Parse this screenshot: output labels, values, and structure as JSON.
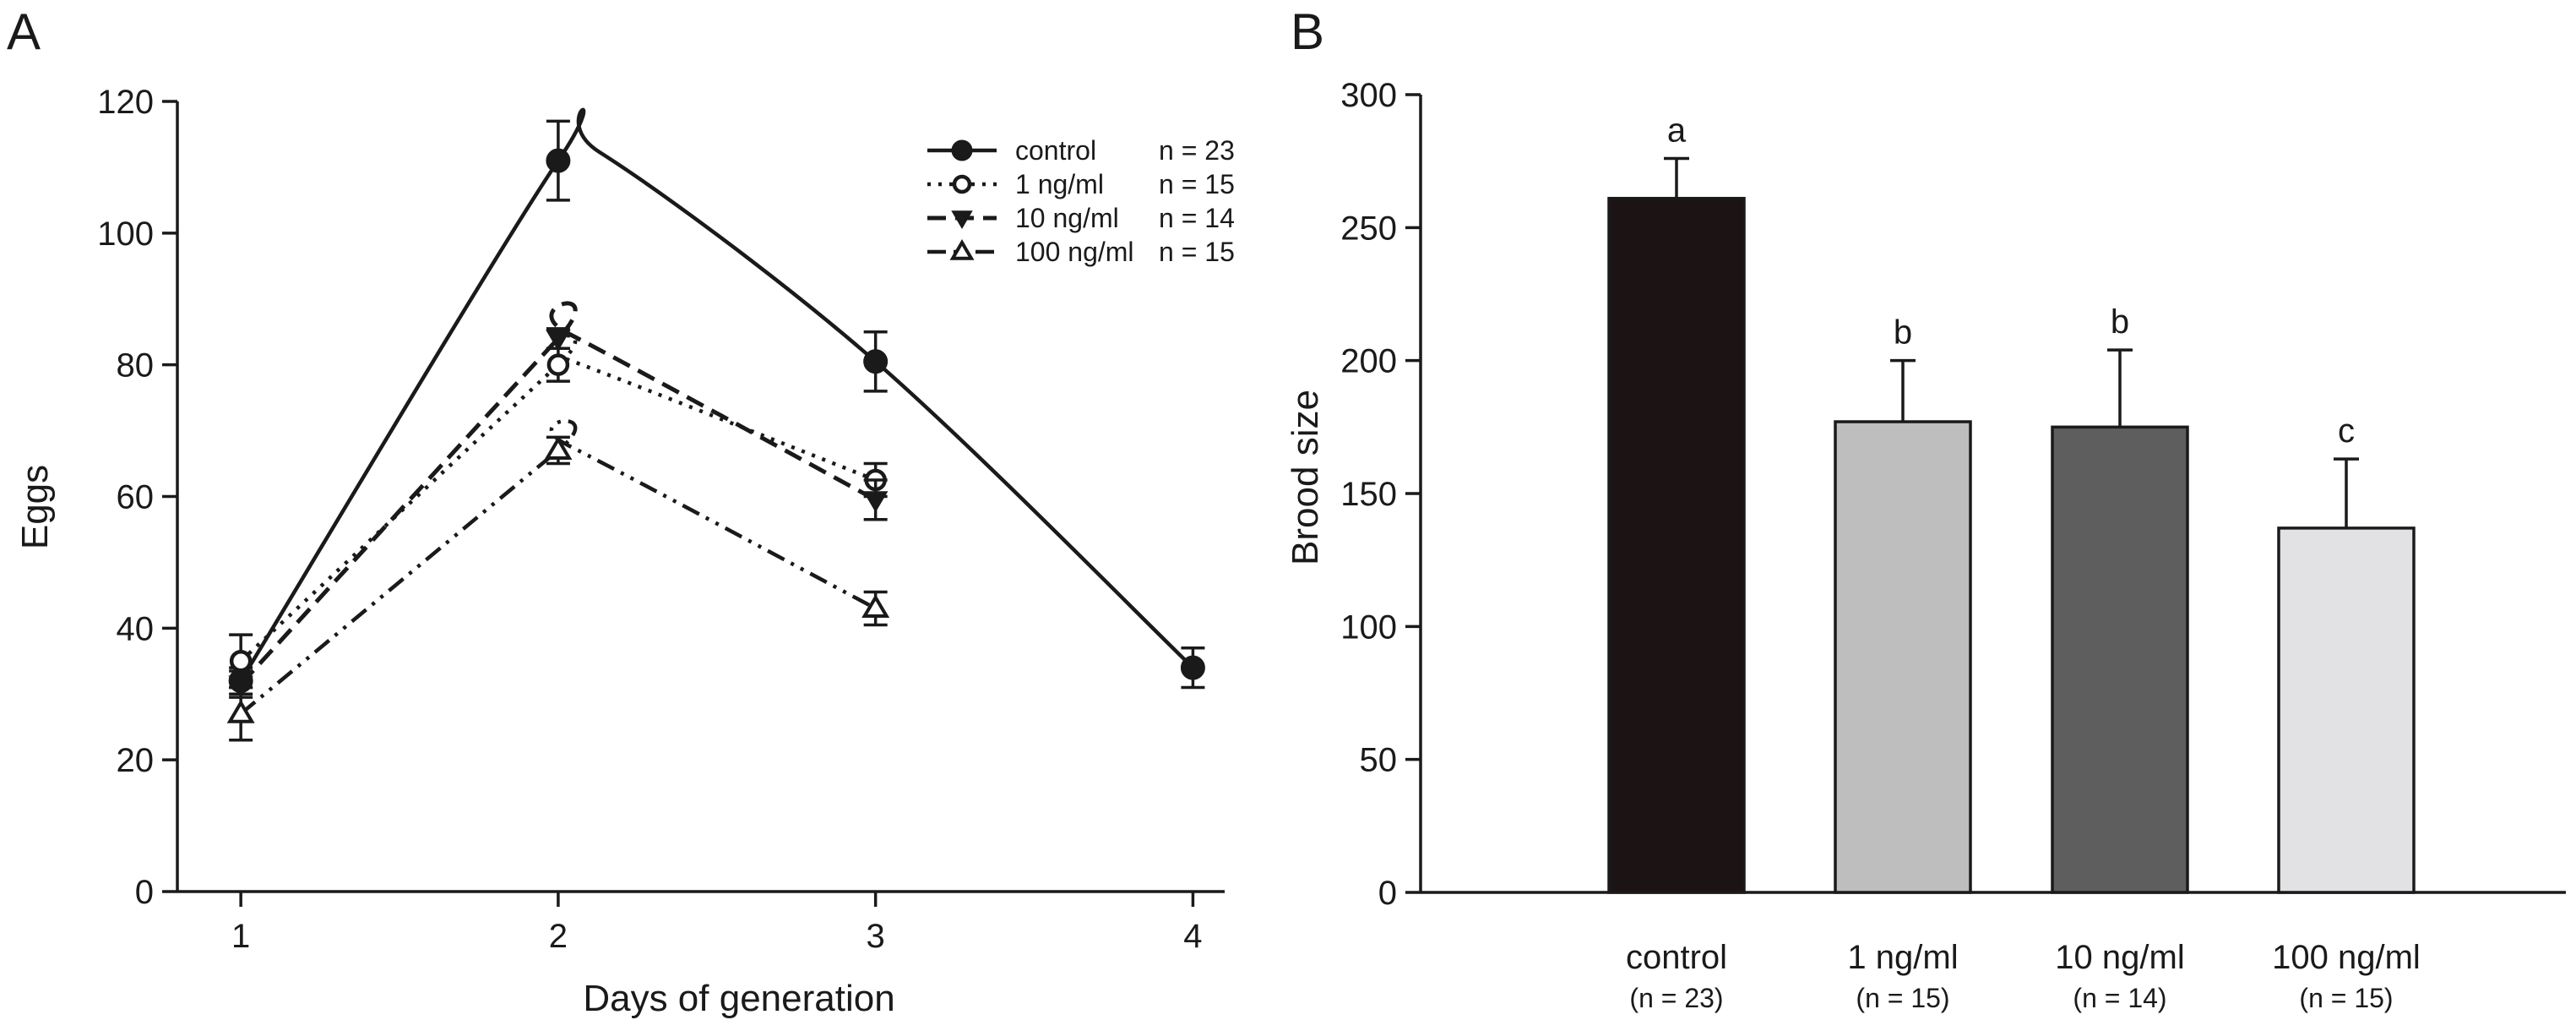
{
  "chart_data": [
    {
      "panel": "A",
      "type": "line",
      "xlabel": "Days of generation",
      "ylabel": "Eggs",
      "xlim": [
        0.8,
        4.1
      ],
      "ylim": [
        0,
        120
      ],
      "x_ticks": [
        1,
        2,
        3,
        4
      ],
      "y_ticks": [
        0,
        20,
        40,
        60,
        80,
        100,
        120
      ],
      "legend_position": "top-right",
      "series": [
        {
          "name": "control",
          "n_label": "n = 23",
          "line": "solid",
          "marker": "circle-filled",
          "x": [
            1,
            2,
            3,
            4
          ],
          "values": [
            32,
            111,
            80.5,
            34
          ],
          "errors": [
            2,
            6,
            4.5,
            3
          ],
          "curve_peak": [
            2.13,
            112.3
          ]
        },
        {
          "name": "1 ng/ml",
          "n_label": "n = 15",
          "line": "dotted",
          "marker": "circle-open",
          "x": [
            1,
            2,
            3
          ],
          "values": [
            35,
            80,
            62.5
          ],
          "errors": [
            4,
            2.5,
            2.5
          ]
        },
        {
          "name": "10 ng/ml",
          "n_label": "n = 14",
          "line": "dashed",
          "marker": "triangle-down-filled",
          "x": [
            1,
            2,
            3
          ],
          "values": [
            31.5,
            84,
            59.5
          ],
          "errors": [
            2,
            1.5,
            3
          ]
        },
        {
          "name": "100 ng/ml",
          "n_label": "n = 15",
          "line": "dash-dot-dot",
          "marker": "triangle-up-open",
          "x": [
            1,
            2,
            3
          ],
          "values": [
            27,
            67,
            43
          ],
          "errors": [
            4,
            2,
            2.5
          ]
        }
      ]
    },
    {
      "panel": "B",
      "type": "bar",
      "xlabel": "",
      "ylabel": "Brood size",
      "ylim": [
        0,
        300
      ],
      "y_ticks": [
        0,
        50,
        100,
        150,
        200,
        250,
        300
      ],
      "categories": [
        "control",
        "1 ng/ml",
        "10 ng/ml",
        "100 ng/ml"
      ],
      "sublabels": [
        "(n = 23)",
        "(n = 15)",
        "(n = 14)",
        "(n = 15)"
      ],
      "values": [
        261,
        177,
        175,
        137
      ],
      "errors": [
        15,
        23,
        29,
        26
      ],
      "significance": [
        "a",
        "b",
        "b",
        "c"
      ],
      "colors": [
        "#1c1414",
        "#bebebe",
        "#5e5e5e",
        "#e2e2e4"
      ]
    }
  ]
}
